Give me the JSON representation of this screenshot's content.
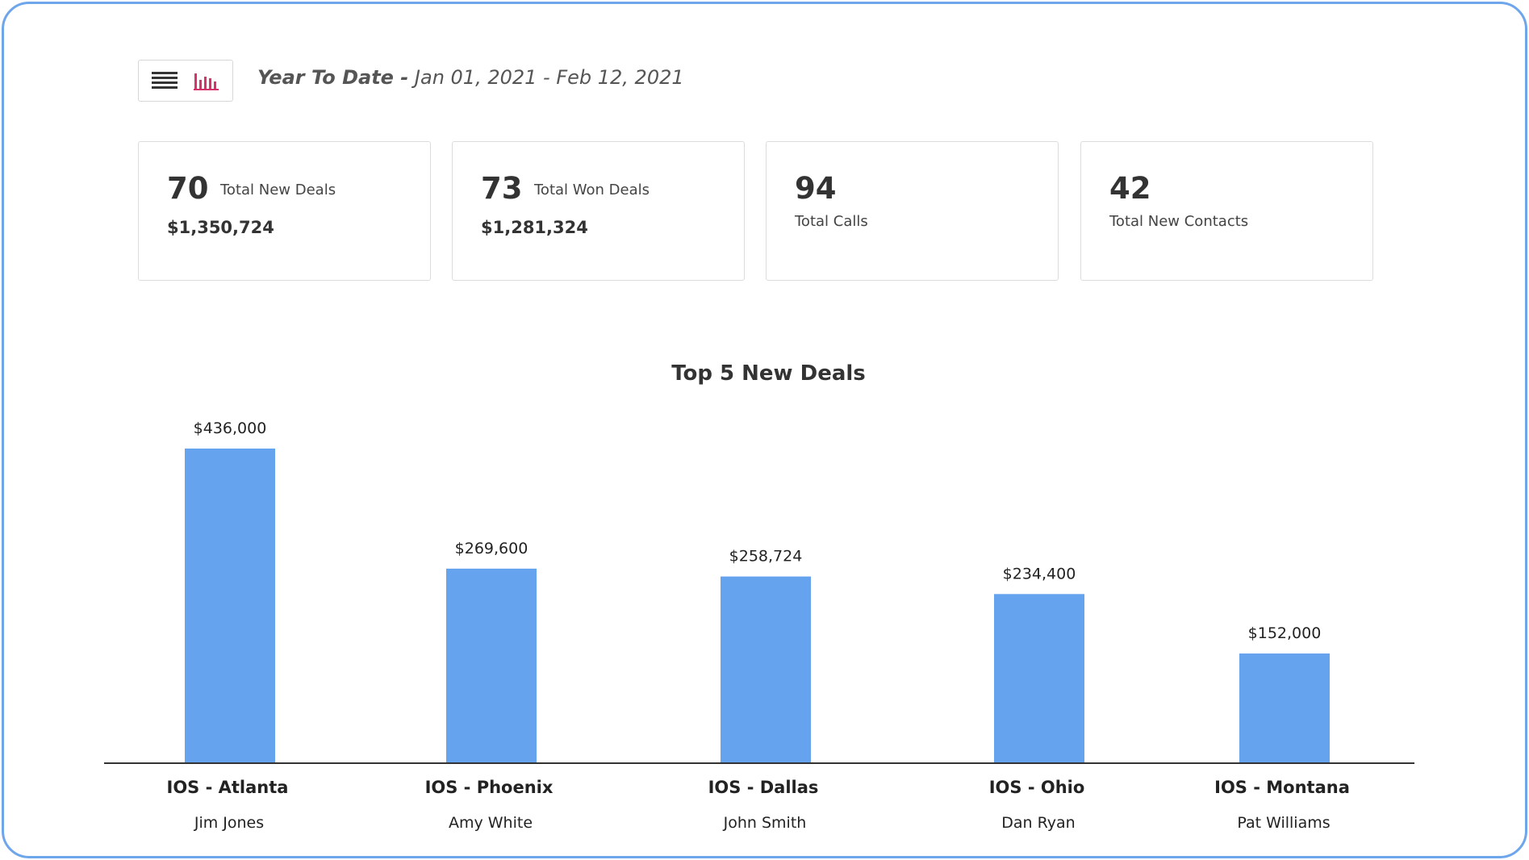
{
  "header": {
    "range_label": "Year To Date -",
    "range_dates": "Jan 01, 2021 - Feb 12, 2021",
    "list_view_icon": "list-icon",
    "chart_view_icon": "bar-chart-icon",
    "chart_view_icon_color": "#d6336c"
  },
  "stats": [
    {
      "value": "70",
      "label": "Total New Deals",
      "amount": "$1,350,724"
    },
    {
      "value": "73",
      "label": "Total Won Deals",
      "amount": "$1,281,324"
    },
    {
      "value": "94",
      "label": "Total Calls"
    },
    {
      "value": "42",
      "label": "Total New Contacts"
    }
  ],
  "colors": {
    "frame_border": "#6ea6ec",
    "bar": "#66a3ee",
    "axis": "#333333"
  },
  "chart_data": {
    "type": "bar",
    "title": "Top 5 New Deals",
    "categories": [
      "IOS - Atlanta",
      "IOS - Phoenix",
      "IOS - Dallas",
      "IOS - Ohio",
      "IOS - Montana"
    ],
    "subcategories": [
      "Jim Jones",
      "Amy White",
      "John Smith",
      "Dan Ryan",
      "Pat Williams"
    ],
    "values": [
      436000,
      269600,
      258724,
      234400,
      152000
    ],
    "value_labels": [
      "$436,000",
      "$269,600",
      "$258,724",
      "$234,400",
      "$152,000"
    ],
    "xlabel": "",
    "ylabel": "",
    "grid": false,
    "legend": "none"
  }
}
